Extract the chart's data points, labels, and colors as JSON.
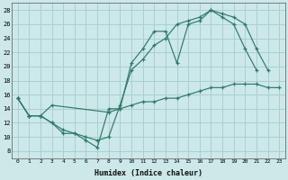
{
  "xlabel": "Humidex (Indice chaleur)",
  "xlim": [
    -0.5,
    23.5
  ],
  "ylim": [
    7,
    29
  ],
  "yticks": [
    8,
    10,
    12,
    14,
    16,
    18,
    20,
    22,
    24,
    26,
    28
  ],
  "xticks": [
    0,
    1,
    2,
    3,
    4,
    5,
    6,
    7,
    8,
    9,
    10,
    11,
    12,
    13,
    14,
    15,
    16,
    17,
    18,
    19,
    20,
    21,
    22,
    23
  ],
  "background_color": "#cce8e8",
  "grid_color": "#aacfcf",
  "line_color": "#2d7a6a",
  "line1_x": [
    0,
    1,
    2,
    3,
    4,
    5,
    6,
    7,
    8,
    9,
    10,
    11,
    12,
    13,
    14,
    15,
    16,
    17,
    18,
    19,
    20,
    21
  ],
  "line1_y": [
    15.5,
    13,
    13,
    12,
    10.5,
    10.5,
    9.5,
    8.5,
    14,
    14,
    20.5,
    22.5,
    25,
    25,
    20.5,
    26,
    26.5,
    28,
    27,
    26,
    22.5,
    19.5
  ],
  "line2_x": [
    0,
    1,
    2,
    3,
    4,
    5,
    6,
    7,
    8,
    9,
    10,
    11,
    12,
    13,
    14,
    15,
    16,
    17,
    18,
    19,
    20,
    21,
    22
  ],
  "line2_y": [
    15.5,
    13,
    13,
    12,
    11,
    10.5,
    10,
    9.5,
    10,
    14.5,
    19.5,
    21,
    23,
    24,
    26,
    26.5,
    27,
    28,
    27.5,
    27,
    26,
    22.5,
    19.5
  ],
  "line3_x": [
    0,
    1,
    2,
    3,
    8,
    9,
    10,
    11,
    12,
    13,
    14,
    15,
    16,
    17,
    18,
    19,
    20,
    21,
    22,
    23
  ],
  "line3_y": [
    15.5,
    13,
    13,
    14.5,
    13.5,
    14,
    14.5,
    15,
    15,
    15.5,
    15.5,
    16,
    16.5,
    17,
    17,
    17.5,
    17.5,
    17.5,
    17,
    17
  ]
}
